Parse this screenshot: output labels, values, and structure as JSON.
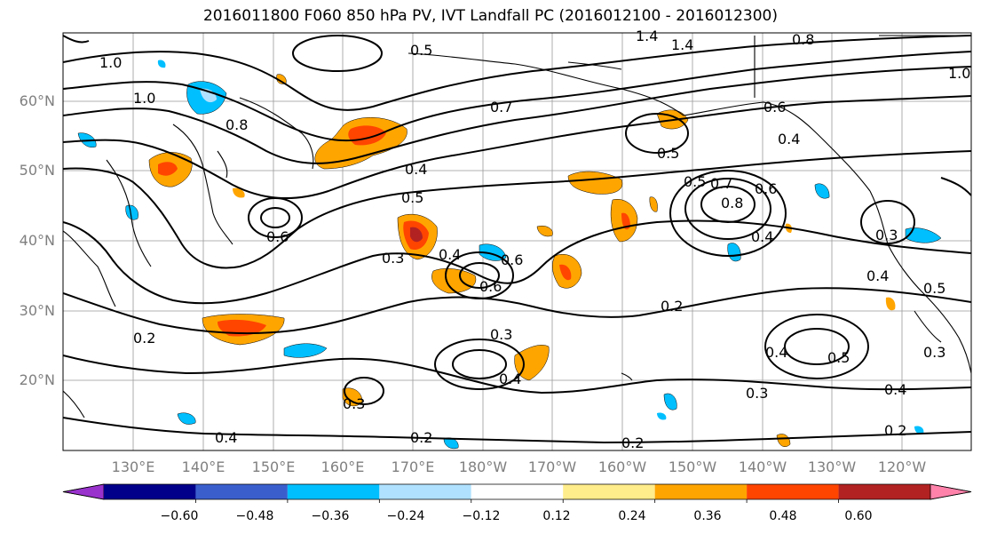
{
  "title": "2016011800 F060 850 hPa PV, IVT Landfall PC (2016012100 - 2016012300)",
  "lat_labels": [
    "60°N",
    "50°N",
    "40°N",
    "30°N",
    "20°N"
  ],
  "lon_labels": [
    "130°E",
    "140°E",
    "150°E",
    "160°E",
    "170°E",
    "180°W",
    "170°W",
    "160°W",
    "150°W",
    "140°W",
    "130°W",
    "120°W"
  ],
  "colorbar": {
    "ticks": [
      "−0.60",
      "−0.48",
      "−0.36",
      "−0.24",
      "−0.12",
      "0.12",
      "0.24",
      "0.36",
      "0.48",
      "0.60"
    ],
    "colors": [
      "#9932cc",
      "#00008b",
      "#3a5fcd",
      "#00bfff",
      "#b0e2ff",
      "#ffffff",
      "#ffec8b",
      "#ffa500",
      "#ff4500",
      "#b22222",
      "#ff82ab"
    ]
  },
  "contour_labels": [
    "1.0",
    "1.4",
    "1.4",
    "0.8",
    "1.0",
    "0.5",
    "1.0",
    "0.4",
    "0.7",
    "0.5",
    "0.8",
    "0.6",
    "0.4",
    "0.5",
    "0.6",
    "0.4",
    "0.5",
    "0.7",
    "0.8",
    "0.6",
    "0.4",
    "0.3",
    "0.6",
    "0.3",
    "0.4",
    "0.5",
    "0.6",
    "0.2",
    "0.3",
    "0.4",
    "0.2",
    "0.4",
    "0.5",
    "0.3",
    "0.3",
    "0.4",
    "0.2",
    "0.2",
    "0.2",
    "0.3",
    "0.4"
  ],
  "colors": {
    "contour": "#000000",
    "grid": "#999999",
    "coast": "#000000",
    "tick_label": "#7f7f7f"
  }
}
